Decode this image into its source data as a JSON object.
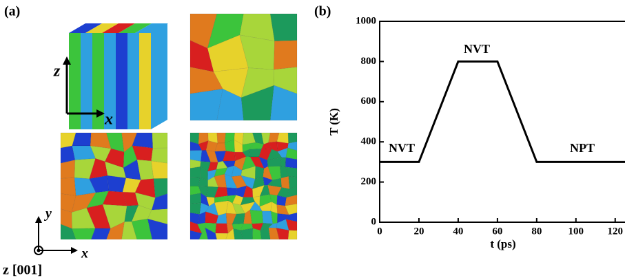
{
  "panel_a": {
    "label": "(a)",
    "cube_axes": [
      "z",
      "x"
    ],
    "plane_axes": [
      "y",
      "x",
      "z [001]"
    ]
  },
  "chart_data": {
    "type": "line",
    "panel_label": "(b)",
    "xlabel": "t (ps)",
    "ylabel": "T (K)",
    "x": [
      0,
      20,
      40,
      60,
      80,
      125
    ],
    "series": [
      {
        "color": "#000000",
        "values": [
          300,
          300,
          800,
          800,
          300,
          300
        ]
      }
    ],
    "xlim": [
      0,
      125
    ],
    "ylim": [
      0,
      1000
    ],
    "xticks": [
      0,
      20,
      40,
      60,
      80,
      100,
      120
    ],
    "yticks": [
      0,
      200,
      400,
      600,
      800,
      1000
    ],
    "annotations": [
      "NVT",
      "NVT",
      "NPT"
    ]
  }
}
